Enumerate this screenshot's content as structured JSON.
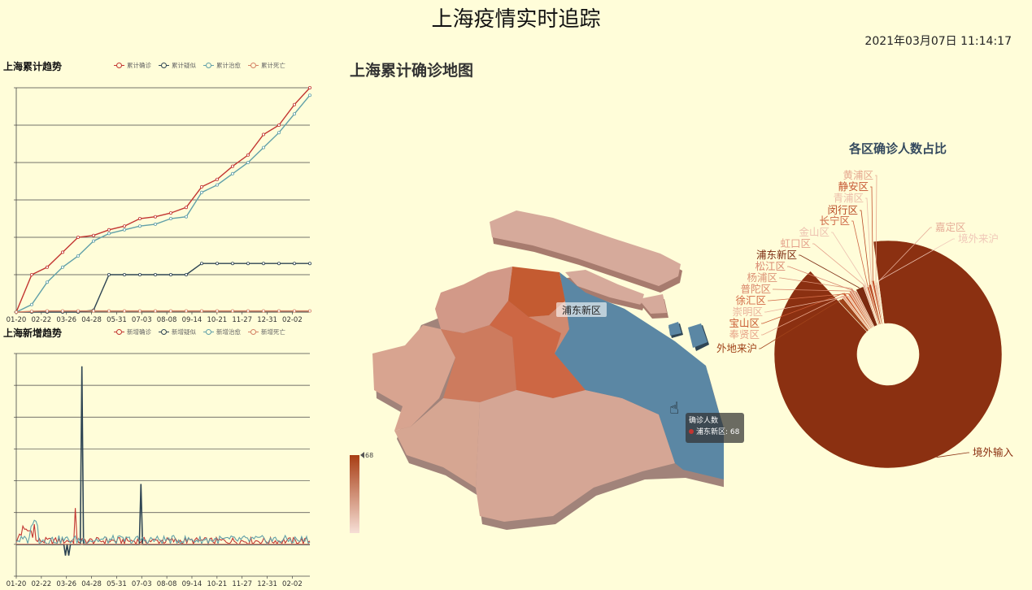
{
  "page_title": "上海疫情实时追踪",
  "datetime": "2021年03月07日  11:14:17",
  "colors": {
    "confirmed": "#c23531",
    "suspected": "#2f4554",
    "cured": "#61a0a8",
    "death": "#d48265",
    "highlight_district": "#5b87a4",
    "pie_main": "#8b3011"
  },
  "chart_data": [
    {
      "type": "line",
      "id": "cumulative",
      "title": "上海累计趋势",
      "x_ticks": [
        "01-20",
        "02-22",
        "03-26",
        "04-28",
        "05-31",
        "07-03",
        "08-08",
        "09-14",
        "10-21",
        "11-27",
        "12-31",
        "02-02"
      ],
      "legend_position": "top-right",
      "grid": true,
      "y_tick_count": 7,
      "ylim": [
        0,
        6
      ],
      "series": [
        {
          "name": "累计确诊",
          "color": "#c23531",
          "values": [
            0,
            1.0,
            1.2,
            1.6,
            2.0,
            2.05,
            2.2,
            2.3,
            2.5,
            2.55,
            2.65,
            2.8,
            3.35,
            3.55,
            3.9,
            4.2,
            4.75,
            5.0,
            5.55,
            6.0
          ]
        },
        {
          "name": "累计疑似",
          "color": "#2f4554",
          "values": [
            0,
            0,
            0,
            0,
            0,
            0.05,
            1.0,
            1.0,
            1.0,
            1.0,
            1.0,
            1.0,
            1.3,
            1.3,
            1.3,
            1.3,
            1.3,
            1.3,
            1.3,
            1.3
          ]
        },
        {
          "name": "累计治愈",
          "color": "#61a0a8",
          "values": [
            0,
            0.2,
            0.8,
            1.2,
            1.5,
            1.9,
            2.1,
            2.2,
            2.3,
            2.35,
            2.5,
            2.55,
            3.2,
            3.4,
            3.7,
            4.0,
            4.4,
            4.8,
            5.3,
            5.8
          ]
        },
        {
          "name": "累计死亡",
          "color": "#d48265",
          "values": [
            0,
            0.02,
            0.03,
            0.03,
            0.03,
            0.03,
            0.03,
            0.03,
            0.03,
            0.03,
            0.03,
            0.03,
            0.03,
            0.03,
            0.03,
            0.03,
            0.03,
            0.03,
            0.03,
            0.03
          ]
        }
      ]
    },
    {
      "type": "line",
      "id": "daily",
      "title": "上海新增趋势",
      "x_ticks": [
        "01-20",
        "02-22",
        "03-26",
        "04-28",
        "05-31",
        "07-03",
        "08-08",
        "09-14",
        "10-21",
        "11-27",
        "12-31",
        "02-02"
      ],
      "legend_position": "top-right",
      "grid": true,
      "y_tick_count": 8,
      "ylim": [
        -1,
        6
      ],
      "series": [
        {
          "name": "新增确诊",
          "color": "#c23531"
        },
        {
          "name": "新增疑似",
          "color": "#2f4554"
        },
        {
          "name": "新增治愈",
          "color": "#61a0a8"
        },
        {
          "name": "新增死亡",
          "color": "#d48265"
        }
      ]
    },
    {
      "type": "map",
      "id": "shanghai_map",
      "title": "上海累计确诊地图",
      "visual_map": {
        "max_label": "68",
        "min": 0,
        "max": 68
      },
      "highlight": {
        "label": "浦东新区"
      },
      "tooltip": {
        "title": "确诊人数",
        "series_label": "浦东新区: 68"
      }
    },
    {
      "type": "pie",
      "id": "district_pie",
      "title": "各区确诊人数占比",
      "slices": [
        {
          "name": "境外输入",
          "value": 90.5,
          "color": "#8b3011"
        },
        {
          "name": "外地来沪",
          "value": 1.2,
          "color": "#a0431a"
        },
        {
          "name": "奉贤区",
          "value": 0.5,
          "color": "#e8a58a"
        },
        {
          "name": "宝山区",
          "value": 0.5,
          "color": "#c95a33"
        },
        {
          "name": "崇明区",
          "value": 0.4,
          "color": "#eab39c"
        },
        {
          "name": "徐汇区",
          "value": 0.5,
          "color": "#d26a45"
        },
        {
          "name": "普陀区",
          "value": 0.5,
          "color": "#d9866a"
        },
        {
          "name": "杨浦区",
          "value": 0.5,
          "color": "#dc9478"
        },
        {
          "name": "松江区",
          "value": 0.5,
          "color": "#d98870"
        },
        {
          "name": "浦东新区",
          "value": 1.8,
          "color": "#7c2a10"
        },
        {
          "name": "虹口区",
          "value": 0.4,
          "color": "#e4a08a"
        },
        {
          "name": "金山区",
          "value": 0.3,
          "color": "#edc2b0"
        },
        {
          "name": "长宁区",
          "value": 0.5,
          "color": "#cd6644"
        },
        {
          "name": "闵行区",
          "value": 0.6,
          "color": "#b84a25"
        },
        {
          "name": "青浦区",
          "value": 0.3,
          "color": "#ecbda9"
        },
        {
          "name": "静安区",
          "value": 0.5,
          "color": "#c55531"
        },
        {
          "name": "黄浦区",
          "value": 0.4,
          "color": "#e6a88f"
        },
        {
          "name": "嘉定区",
          "value": 0.3,
          "color": "#e6ad98"
        },
        {
          "name": "境外来沪",
          "value": 0.2,
          "color": "#f0c8b8"
        }
      ]
    }
  ]
}
